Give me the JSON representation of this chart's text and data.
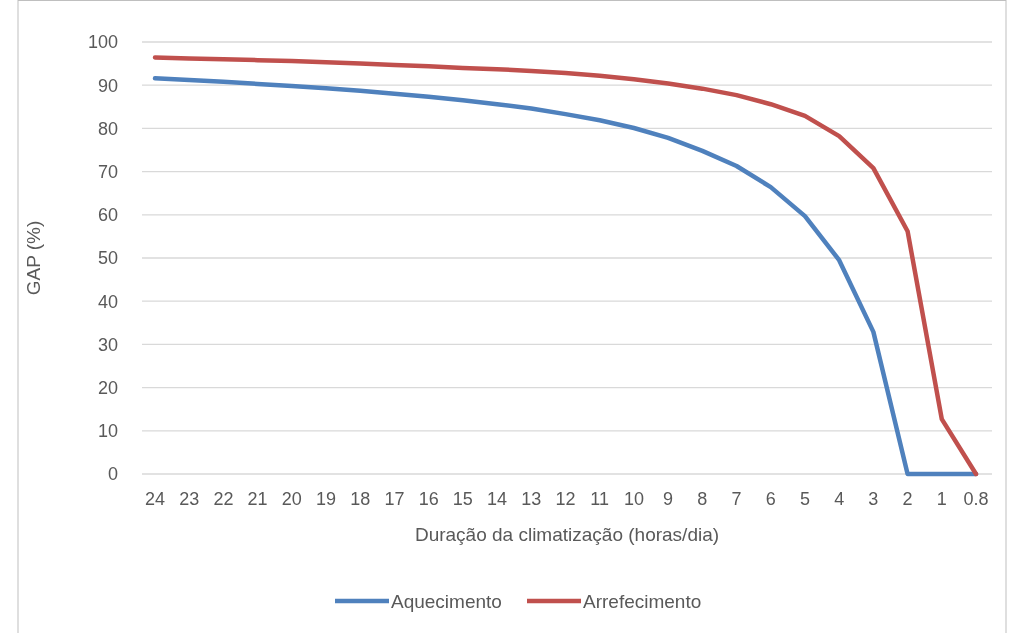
{
  "chart_data": {
    "type": "line",
    "xlabel": "Duração da climatização (horas/dia)",
    "ylabel": "GAP (%)",
    "categories": [
      "24",
      "23",
      "22",
      "21",
      "20",
      "19",
      "18",
      "17",
      "16",
      "15",
      "14",
      "13",
      "12",
      "11",
      "10",
      "9",
      "8",
      "7",
      "6",
      "5",
      "4",
      "3",
      "2",
      "1",
      "0.8"
    ],
    "series": [
      {
        "name": "Aquecimento",
        "color": "#4f81bd",
        "values": [
          91.6,
          91.2,
          90.8,
          90.3,
          89.8,
          89.3,
          88.7,
          88.0,
          87.3,
          86.5,
          85.6,
          84.6,
          83.3,
          81.9,
          80.1,
          77.8,
          74.8,
          71.3,
          66.4,
          59.7,
          49.5,
          32.9,
          0,
          0,
          0
        ]
      },
      {
        "name": "Arrefecimento",
        "color": "#c0504d",
        "values": [
          96.4,
          96.2,
          96.0,
          95.8,
          95.6,
          95.3,
          95.0,
          94.7,
          94.4,
          94.0,
          93.7,
          93.3,
          92.8,
          92.2,
          91.4,
          90.4,
          89.2,
          87.7,
          85.6,
          82.9,
          78.2,
          70.8,
          56.2,
          12.7,
          0
        ]
      }
    ],
    "ylim": [
      0,
      100
    ],
    "yticks": [
      0,
      10,
      20,
      30,
      40,
      50,
      60,
      70,
      80,
      90,
      100
    ],
    "grid": "y",
    "legend": "bottom",
    "marker": "none",
    "line_style": "solid"
  }
}
